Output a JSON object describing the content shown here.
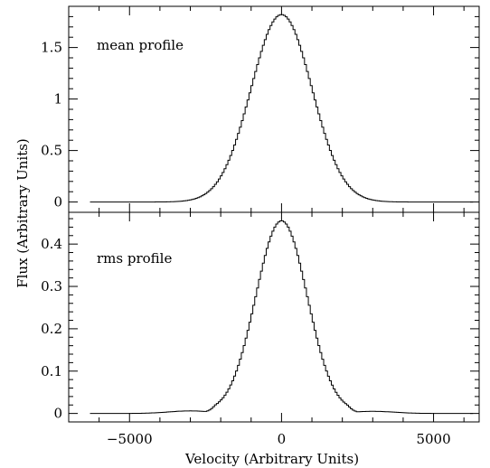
{
  "chart_data": [
    {
      "type": "line",
      "panel": "top",
      "annotation": "mean profile",
      "xlabel": "Velocity (Arbitrary Units)",
      "ylabel": "Flux (Arbitrary Units)",
      "xlim": [
        -7000,
        6500
      ],
      "ylim": [
        -0.1,
        1.9
      ],
      "x_ticks": [
        -5000,
        0,
        5000
      ],
      "x_tick_labels": [
        "",
        "",
        ""
      ],
      "y_ticks": [
        0,
        0.5,
        1,
        1.5
      ],
      "y_tick_labels": [
        "0",
        "0.5",
        "1",
        "1.5"
      ],
      "grid": false,
      "profile": {
        "shape": "gaussian",
        "peak_x": 0,
        "peak_y": 1.82,
        "sigma": 1000,
        "x_range": [
          -6300,
          6300
        ],
        "steps": 200
      }
    },
    {
      "type": "line",
      "panel": "bottom",
      "annotation": "rms profile",
      "xlabel": "Velocity (Arbitrary Units)",
      "ylabel": "Flux (Arbitrary Units)",
      "xlim": [
        -7000,
        6500
      ],
      "ylim": [
        -0.02,
        0.475
      ],
      "x_ticks": [
        -5000,
        0,
        5000
      ],
      "x_tick_labels": [
        "−5000",
        "0",
        "5000"
      ],
      "y_ticks": [
        0,
        0.1,
        0.2,
        0.3,
        0.4
      ],
      "y_tick_labels": [
        "0",
        "0.1",
        "0.2",
        "0.3",
        "0.4"
      ],
      "grid": false,
      "profile": {
        "shape": "gaussian-core",
        "peak_x": 0,
        "peak_y": 0.455,
        "sigma": 850,
        "x_range": [
          -6300,
          6300
        ],
        "steps": 200,
        "wings": [
          {
            "center": -3000,
            "height": 0.006,
            "width": 700
          },
          {
            "center": 3000,
            "height": 0.005,
            "width": 700
          }
        ],
        "core_cut": 2500
      }
    }
  ]
}
